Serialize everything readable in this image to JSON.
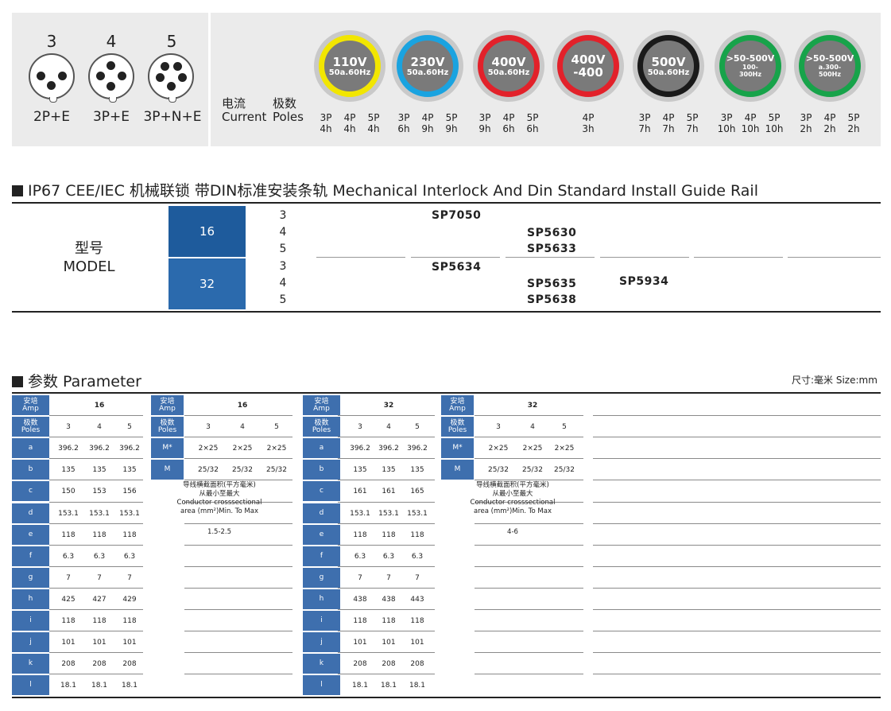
{
  "plugs": [
    {
      "pins": "3",
      "config": "2P+E"
    },
    {
      "pins": "4",
      "config": "3P+E"
    },
    {
      "pins": "5",
      "config": "3P+N+E"
    }
  ],
  "legend": {
    "cn1": "电流",
    "cn2": "极数",
    "en1": "Current",
    "en2": "Poles"
  },
  "rings": [
    {
      "voltage": "110V",
      "sub": "50a.60Hz",
      "color": "#f2e600",
      "poles": [
        [
          "3P",
          "4h"
        ],
        [
          "4P",
          "4h"
        ],
        [
          "5P",
          "4h"
        ]
      ]
    },
    {
      "voltage": "230V",
      "sub": "50a.60Hz",
      "color": "#1aa3e0",
      "poles": [
        [
          "3P",
          "6h"
        ],
        [
          "4P",
          "9h"
        ],
        [
          "5P",
          "9h"
        ]
      ]
    },
    {
      "voltage": "400V",
      "sub": "50a.60Hz",
      "color": "#e2212a",
      "poles": [
        [
          "3P",
          "9h"
        ],
        [
          "4P",
          "6h"
        ],
        [
          "5P",
          "6h"
        ]
      ]
    },
    {
      "voltage": "400V",
      "sub": "-400",
      "color": "#e2212a",
      "poles": [
        [
          "4P",
          "3h"
        ]
      ]
    },
    {
      "voltage": "500V",
      "sub": "50a.60Hz",
      "color": "#1a1a1a",
      "poles": [
        [
          "3P",
          "7h"
        ],
        [
          "4P",
          "7h"
        ],
        [
          "5P",
          "7h"
        ]
      ]
    },
    {
      "voltage": ">50-500V",
      "sub": "100-\n300Hz",
      "color": "#17a34a",
      "poles": [
        [
          "3P",
          "10h"
        ],
        [
          "4P",
          "10h"
        ],
        [
          "5P",
          "10h"
        ]
      ]
    },
    {
      "voltage": ">50-500V",
      "sub": "a.300-\n500Hz",
      "color": "#17a34a",
      "poles": [
        [
          "3P",
          "2h"
        ],
        [
          "4P",
          "2h"
        ],
        [
          "5P",
          "2h"
        ]
      ]
    }
  ],
  "section1": {
    "title": "IP67 CEE/IEC 机械联锁 带DIN标准安装条轨 Mechanical Interlock  And Din Standard Install Guide Rail",
    "model_cn": "型号",
    "model_en": "MODEL",
    "groups": [
      {
        "amp": "16",
        "poles": [
          "3",
          "4",
          "5"
        ]
      },
      {
        "amp": "32",
        "poles": [
          "3",
          "4",
          "5"
        ]
      }
    ],
    "codes": [
      "SP7050",
      "SP5630",
      "SP5633",
      "SP5634",
      "SP5635",
      "SP5638",
      "SP5934"
    ]
  },
  "section2": {
    "title": "参数 Parameter",
    "size_note": "尺寸:毫米  Size:mm",
    "amp_label_cn": "安培",
    "amp_label_en": "Amp",
    "poles_label_cn": "极数",
    "poles_label_en": "Poles",
    "rows": [
      "a",
      "b",
      "c",
      "d",
      "e",
      "f",
      "g",
      "h",
      "i",
      "j",
      "k",
      "l"
    ],
    "block16": {
      "amp": "16",
      "poles": [
        "3",
        "4",
        "5"
      ],
      "values": [
        [
          "396.2",
          "396.2",
          "396.2"
        ],
        [
          "135",
          "135",
          "135"
        ],
        [
          "150",
          "153",
          "156"
        ],
        [
          "153.1",
          "153.1",
          "153.1"
        ],
        [
          "118",
          "118",
          "118"
        ],
        [
          "6.3",
          "6.3",
          "6.3"
        ],
        [
          "7",
          "7",
          "7"
        ],
        [
          "425",
          "427",
          "429"
        ],
        [
          "118",
          "118",
          "118"
        ],
        [
          "101",
          "101",
          "101"
        ],
        [
          "208",
          "208",
          "208"
        ],
        [
          "18.1",
          "18.1",
          "18.1"
        ]
      ]
    },
    "block32": {
      "amp": "32",
      "poles": [
        "3",
        "4",
        "5"
      ],
      "values": [
        [
          "396.2",
          "396.2",
          "396.2"
        ],
        [
          "135",
          "135",
          "135"
        ],
        [
          "161",
          "161",
          "165"
        ],
        [
          "153.1",
          "153.1",
          "153.1"
        ],
        [
          "118",
          "118",
          "118"
        ],
        [
          "6.3",
          "6.3",
          "6.3"
        ],
        [
          "7",
          "7",
          "7"
        ],
        [
          "438",
          "438",
          "443"
        ],
        [
          "118",
          "118",
          "118"
        ],
        [
          "101",
          "101",
          "101"
        ],
        [
          "208",
          "208",
          "208"
        ],
        [
          "18.1",
          "18.1",
          "18.1"
        ]
      ]
    },
    "mblock16": {
      "amp": "16",
      "poles": [
        "3",
        "4",
        "5"
      ],
      "m_star_label": "M*",
      "m_label": "M",
      "m_star": [
        "2×25",
        "2×25",
        "2×25"
      ],
      "m": [
        "25/32",
        "25/32",
        "25/32"
      ],
      "cond_cn1": "导线横截面积(平方毫米)",
      "cond_cn2": "从最小至最大",
      "cond_en1": "Conductor crosssectional",
      "cond_en2": "area (mm²)Min. To Max",
      "cond_value": "1.5-2.5"
    },
    "mblock32": {
      "amp": "32",
      "poles": [
        "3",
        "4",
        "5"
      ],
      "m_star_label": "M*",
      "m_label": "M",
      "m_star": [
        "2×25",
        "2×25",
        "2×25"
      ],
      "m": [
        "25/32",
        "25/32",
        "25/32"
      ],
      "cond_cn1": "导线横截面积(平方毫米)",
      "cond_cn2": "从最小至最大",
      "cond_en1": "Conductor crosssectional",
      "cond_en2": "area (mm²)Min. To Max",
      "cond_value": "4-6"
    }
  }
}
